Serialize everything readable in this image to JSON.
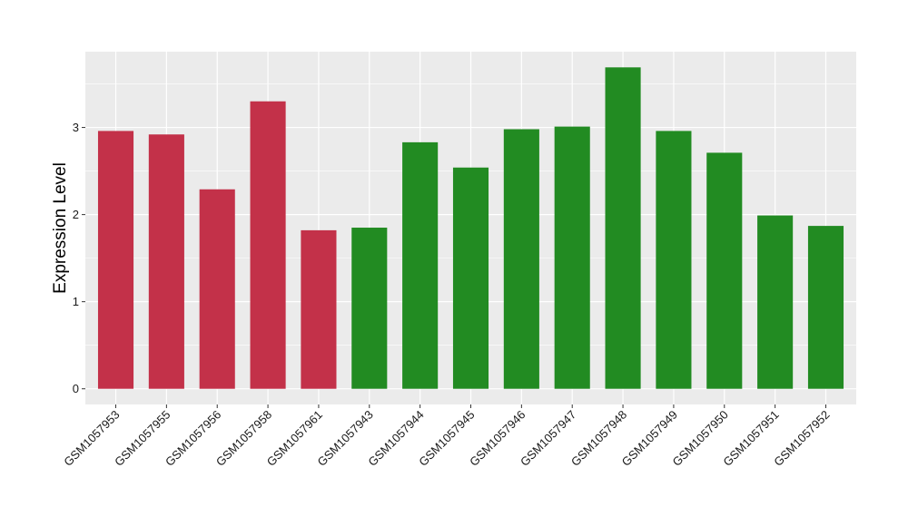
{
  "chart_data": {
    "type": "bar",
    "title": "",
    "xlabel": "",
    "ylabel": "Expression Level",
    "categories": [
      "GSM1057953",
      "GSM1057955",
      "GSM1057956",
      "GSM1057958",
      "GSM1057961",
      "GSM1057943",
      "GSM1057944",
      "GSM1057945",
      "GSM1057946",
      "GSM1057947",
      "GSM1057948",
      "GSM1057949",
      "GSM1057950",
      "GSM1057951",
      "GSM1057952"
    ],
    "values": [
      2.96,
      2.92,
      2.29,
      3.3,
      1.82,
      1.85,
      2.83,
      2.54,
      2.98,
      3.01,
      3.69,
      2.96,
      2.71,
      1.99,
      1.87
    ],
    "bar_colors": [
      "#c33149",
      "#c33149",
      "#c33149",
      "#c33149",
      "#c33149",
      "#228b22",
      "#228b22",
      "#228b22",
      "#228b22",
      "#228b22",
      "#228b22",
      "#228b22",
      "#228b22",
      "#228b22",
      "#228b22"
    ],
    "ylim": [
      -0.18,
      3.87
    ],
    "yticks": [
      0,
      1,
      2,
      3
    ],
    "grid": true,
    "legend": "none",
    "panel_background": "#ebebeb",
    "grid_color": "#ffffff"
  }
}
